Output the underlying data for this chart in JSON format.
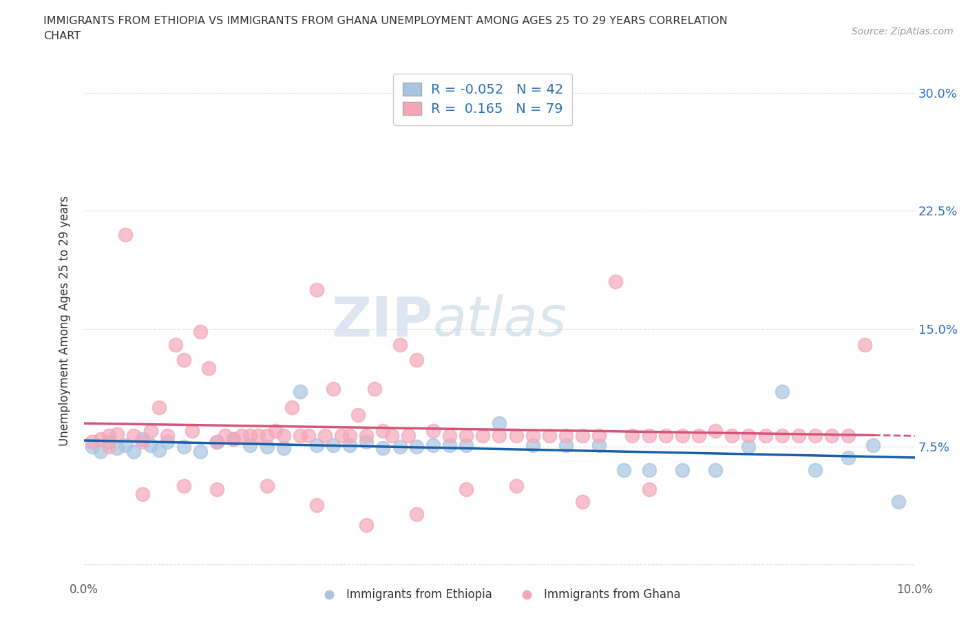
{
  "title": "IMMIGRANTS FROM ETHIOPIA VS IMMIGRANTS FROM GHANA UNEMPLOYMENT AMONG AGES 25 TO 29 YEARS CORRELATION\nCHART",
  "source": "Source: ZipAtlas.com",
  "ylabel": "Unemployment Among Ages 25 to 29 years",
  "xlim": [
    0.0,
    0.1
  ],
  "ylim": [
    -0.01,
    0.32
  ],
  "xticks": [
    0.0,
    0.02,
    0.04,
    0.06,
    0.08,
    0.1
  ],
  "xticklabels": [
    "0.0%",
    "",
    "",
    "",
    "",
    "10.0%"
  ],
  "yticks": [
    0.0,
    0.075,
    0.15,
    0.225,
    0.3
  ],
  "yticklabels": [
    "",
    "7.5%",
    "15.0%",
    "22.5%",
    "30.0%"
  ],
  "watermark_zip": "ZIP",
  "watermark_atlas": "atlas",
  "ethiopia_R": -0.052,
  "ethiopia_N": 42,
  "ghana_R": 0.165,
  "ghana_N": 79,
  "ethiopia_color": "#a8c4e0",
  "ghana_color": "#f4a7b9",
  "ethiopia_line_color": "#1a5fa8",
  "ghana_line_color": "#d4547a",
  "legend_ethiopia_label": "Immigrants from Ethiopia",
  "legend_ghana_label": "Immigrants from Ghana",
  "ethiopia_scatter_x": [
    0.001,
    0.002,
    0.003,
    0.004,
    0.005,
    0.006,
    0.007,
    0.008,
    0.009,
    0.01,
    0.012,
    0.014,
    0.016,
    0.018,
    0.02,
    0.022,
    0.024,
    0.026,
    0.028,
    0.03,
    0.032,
    0.034,
    0.036,
    0.038,
    0.04,
    0.042,
    0.044,
    0.046,
    0.05,
    0.054,
    0.058,
    0.062,
    0.065,
    0.068,
    0.072,
    0.076,
    0.08,
    0.084,
    0.088,
    0.092,
    0.095,
    0.098
  ],
  "ethiopia_scatter_y": [
    0.075,
    0.072,
    0.078,
    0.074,
    0.076,
    0.072,
    0.08,
    0.076,
    0.073,
    0.078,
    0.075,
    0.072,
    0.078,
    0.08,
    0.076,
    0.075,
    0.074,
    0.11,
    0.076,
    0.076,
    0.076,
    0.078,
    0.074,
    0.075,
    0.075,
    0.076,
    0.076,
    0.076,
    0.09,
    0.076,
    0.076,
    0.076,
    0.06,
    0.06,
    0.06,
    0.06,
    0.075,
    0.11,
    0.06,
    0.068,
    0.076,
    0.04
  ],
  "ghana_scatter_x": [
    0.001,
    0.002,
    0.003,
    0.004,
    0.005,
    0.006,
    0.007,
    0.008,
    0.009,
    0.01,
    0.011,
    0.012,
    0.013,
    0.014,
    0.015,
    0.016,
    0.017,
    0.018,
    0.019,
    0.02,
    0.021,
    0.022,
    0.023,
    0.024,
    0.025,
    0.026,
    0.027,
    0.028,
    0.029,
    0.03,
    0.031,
    0.032,
    0.033,
    0.034,
    0.035,
    0.036,
    0.037,
    0.038,
    0.039,
    0.04,
    0.042,
    0.044,
    0.046,
    0.048,
    0.05,
    0.052,
    0.054,
    0.056,
    0.058,
    0.06,
    0.062,
    0.064,
    0.066,
    0.068,
    0.07,
    0.072,
    0.074,
    0.076,
    0.078,
    0.08,
    0.082,
    0.084,
    0.086,
    0.088,
    0.09,
    0.092,
    0.094,
    0.003,
    0.007,
    0.012,
    0.016,
    0.022,
    0.028,
    0.034,
    0.04,
    0.046,
    0.052,
    0.06,
    0.068
  ],
  "ghana_scatter_y": [
    0.078,
    0.08,
    0.082,
    0.083,
    0.21,
    0.082,
    0.078,
    0.085,
    0.1,
    0.082,
    0.14,
    0.13,
    0.085,
    0.148,
    0.125,
    0.078,
    0.082,
    0.08,
    0.082,
    0.082,
    0.082,
    0.082,
    0.085,
    0.082,
    0.1,
    0.082,
    0.082,
    0.175,
    0.082,
    0.112,
    0.082,
    0.082,
    0.095,
    0.082,
    0.112,
    0.085,
    0.082,
    0.14,
    0.082,
    0.13,
    0.085,
    0.082,
    0.082,
    0.082,
    0.082,
    0.082,
    0.082,
    0.082,
    0.082,
    0.082,
    0.082,
    0.18,
    0.082,
    0.082,
    0.082,
    0.082,
    0.082,
    0.085,
    0.082,
    0.082,
    0.082,
    0.082,
    0.082,
    0.082,
    0.082,
    0.082,
    0.14,
    0.075,
    0.045,
    0.05,
    0.048,
    0.05,
    0.038,
    0.025,
    0.032,
    0.048,
    0.05,
    0.04,
    0.048
  ],
  "background_color": "#ffffff",
  "grid_color": "#dddddd",
  "title_color": "#333333",
  "axis_label_color": "#333333",
  "tick_label_color_right": "#2a6ebb",
  "tick_label_color_bottom": "#555555"
}
